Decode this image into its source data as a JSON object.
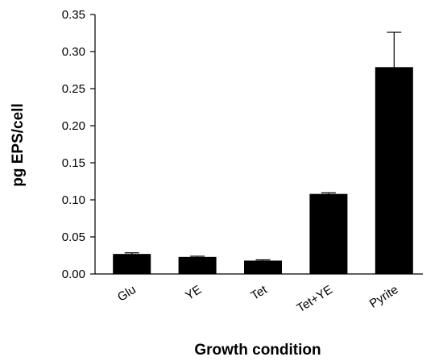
{
  "chart_data": {
    "type": "bar",
    "categories": [
      "Glu",
      "YE",
      "Tet",
      "Tet+YE",
      "Pyrite"
    ],
    "values": [
      0.027,
      0.023,
      0.018,
      0.108,
      0.279
    ],
    "errors": [
      0.0015,
      0.001,
      0.001,
      0.0015,
      0.047
    ],
    "ylim": [
      0,
      0.35
    ],
    "yticks": [
      "0.00",
      "0.05",
      "0.10",
      "0.15",
      "0.20",
      "0.25",
      "0.30",
      "0.35"
    ],
    "xlabel": "Growth condition",
    "ylabel": "pg EPS/cell",
    "bar_color": "#000000",
    "grid": false,
    "legend": "none"
  }
}
